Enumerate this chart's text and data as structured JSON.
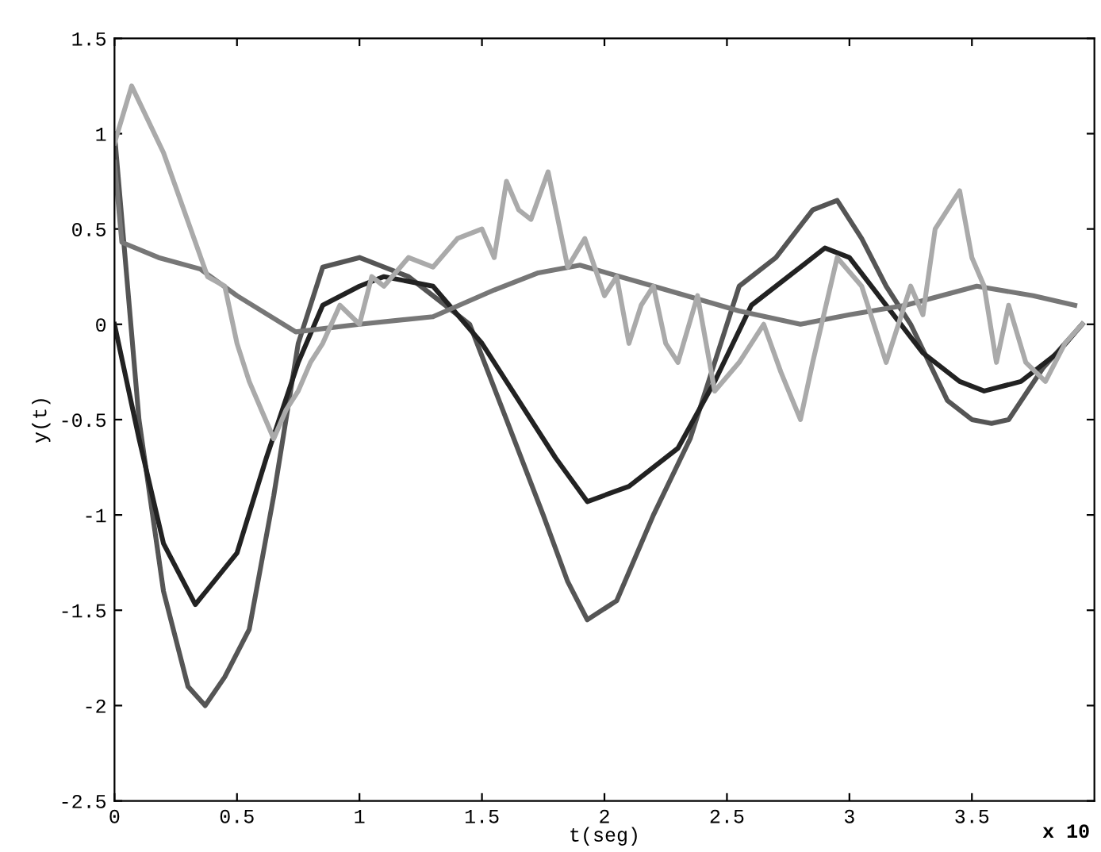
{
  "chart_data": {
    "type": "line",
    "xlabel": "t(seg)",
    "ylabel": "y(t)",
    "annotations": [
      "x 10"
    ],
    "xlim": [
      0,
      4
    ],
    "ylim": [
      -2.5,
      1.5
    ],
    "xticks": [
      0,
      0.5,
      1,
      1.5,
      2,
      2.5,
      3,
      3.5
    ],
    "yticks": [
      -2.5,
      -2,
      -1.5,
      -1,
      -0.5,
      0,
      0.5,
      1,
      1.5
    ],
    "marker": "none",
    "line_style": "solid",
    "series": [
      {
        "color": "#555555",
        "x": [
          0,
          0.1,
          0.2,
          0.3,
          0.37,
          0.45,
          0.55,
          0.65,
          0.75,
          0.85,
          1.0,
          1.2,
          1.35,
          1.45,
          1.6,
          1.75,
          1.85,
          1.93,
          2.05,
          2.2,
          2.35,
          2.45,
          2.55,
          2.7,
          2.85,
          2.95,
          3.05,
          3.15,
          3.25,
          3.4,
          3.5,
          3.58,
          3.65,
          3.79,
          3.95
        ],
        "values": [
          1.0,
          -0.5,
          -1.4,
          -1.9,
          -2.0,
          -1.85,
          -1.6,
          -0.9,
          -0.1,
          0.3,
          0.35,
          0.25,
          0.1,
          0.0,
          -0.5,
          -1.0,
          -1.35,
          -1.55,
          -1.45,
          -1.0,
          -0.6,
          -0.2,
          0.2,
          0.35,
          0.6,
          0.65,
          0.45,
          0.2,
          0.0,
          -0.4,
          -0.5,
          -0.52,
          -0.5,
          -0.23,
          0.0
        ]
      },
      {
        "color": "#222222",
        "x": [
          0,
          0.1,
          0.2,
          0.33,
          0.5,
          0.62,
          0.75,
          0.85,
          1.0,
          1.1,
          1.3,
          1.5,
          1.65,
          1.8,
          1.93,
          2.1,
          2.3,
          2.45,
          2.6,
          2.75,
          2.9,
          3.0,
          3.15,
          3.3,
          3.45,
          3.55,
          3.7,
          3.85,
          3.95
        ],
        "values": [
          0.0,
          -0.6,
          -1.15,
          -1.47,
          -1.2,
          -0.7,
          -0.2,
          0.1,
          0.2,
          0.25,
          0.2,
          -0.1,
          -0.4,
          -0.7,
          -0.93,
          -0.85,
          -0.65,
          -0.3,
          0.1,
          0.25,
          0.4,
          0.35,
          0.1,
          -0.15,
          -0.3,
          -0.35,
          -0.3,
          -0.15,
          0.0
        ]
      },
      {
        "color": "#777777",
        "x": [
          0,
          0.03,
          0.18,
          0.35,
          0.5,
          0.74,
          1.0,
          1.3,
          1.55,
          1.73,
          1.9,
          2.2,
          2.55,
          2.8,
          3.0,
          3.23,
          3.52,
          3.75,
          3.92
        ],
        "values": [
          0.85,
          0.43,
          0.35,
          0.29,
          0.15,
          -0.04,
          0.0,
          0.04,
          0.18,
          0.27,
          0.31,
          0.2,
          0.07,
          0.0,
          0.05,
          0.1,
          0.2,
          0.15,
          0.1
        ]
      },
      {
        "color": "#aaaaaa",
        "x": [
          0,
          0.07,
          0.2,
          0.38,
          0.45,
          0.5,
          0.55,
          0.6,
          0.65,
          0.7,
          0.75,
          0.8,
          0.85,
          0.92,
          1.0,
          1.05,
          1.1,
          1.2,
          1.3,
          1.4,
          1.5,
          1.55,
          1.6,
          1.65,
          1.7,
          1.77,
          1.85,
          1.92,
          2.0,
          2.05,
          2.1,
          2.15,
          2.2,
          2.25,
          2.3,
          2.38,
          2.45,
          2.55,
          2.65,
          2.72,
          2.8,
          2.85,
          2.95,
          3.05,
          3.15,
          3.25,
          3.3,
          3.35,
          3.45,
          3.5,
          3.55,
          3.6,
          3.65,
          3.72,
          3.8,
          3.88,
          3.95
        ],
        "values": [
          0.95,
          1.25,
          0.9,
          0.25,
          0.2,
          -0.1,
          -0.3,
          -0.45,
          -0.6,
          -0.45,
          -0.35,
          -0.2,
          -0.1,
          0.1,
          0.0,
          0.25,
          0.2,
          0.35,
          0.3,
          0.45,
          0.5,
          0.35,
          0.75,
          0.6,
          0.55,
          0.8,
          0.3,
          0.45,
          0.15,
          0.25,
          -0.1,
          0.1,
          0.2,
          -0.1,
          -0.2,
          0.15,
          -0.35,
          -0.2,
          0.0,
          -0.25,
          -0.5,
          -0.2,
          0.35,
          0.2,
          -0.2,
          0.2,
          0.05,
          0.5,
          0.7,
          0.35,
          0.2,
          -0.2,
          0.1,
          -0.2,
          -0.3,
          -0.1,
          0.0
        ]
      }
    ]
  }
}
